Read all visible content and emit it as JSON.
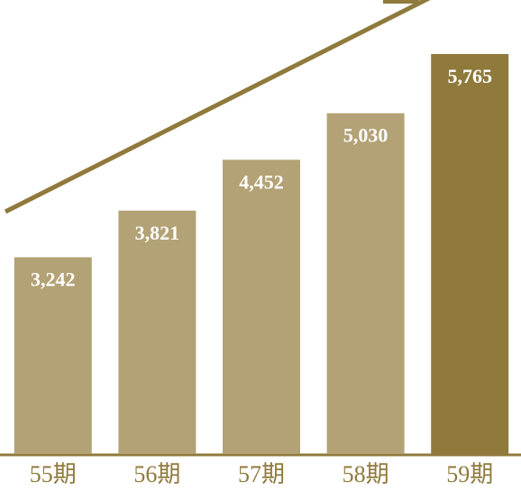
{
  "chart_data": {
    "type": "bar",
    "categories": [
      "55期",
      "56期",
      "57期",
      "58期",
      "59期"
    ],
    "values": [
      3242,
      3821,
      4452,
      5030,
      5765
    ],
    "value_labels": [
      "3,242",
      "3,821",
      "4,452",
      "5,030",
      "5,765"
    ],
    "colors": [
      "#b3a275",
      "#b3a275",
      "#b3a275",
      "#b3a275",
      "#8f7a3c"
    ],
    "ylim": [
      800,
      6100
    ]
  }
}
